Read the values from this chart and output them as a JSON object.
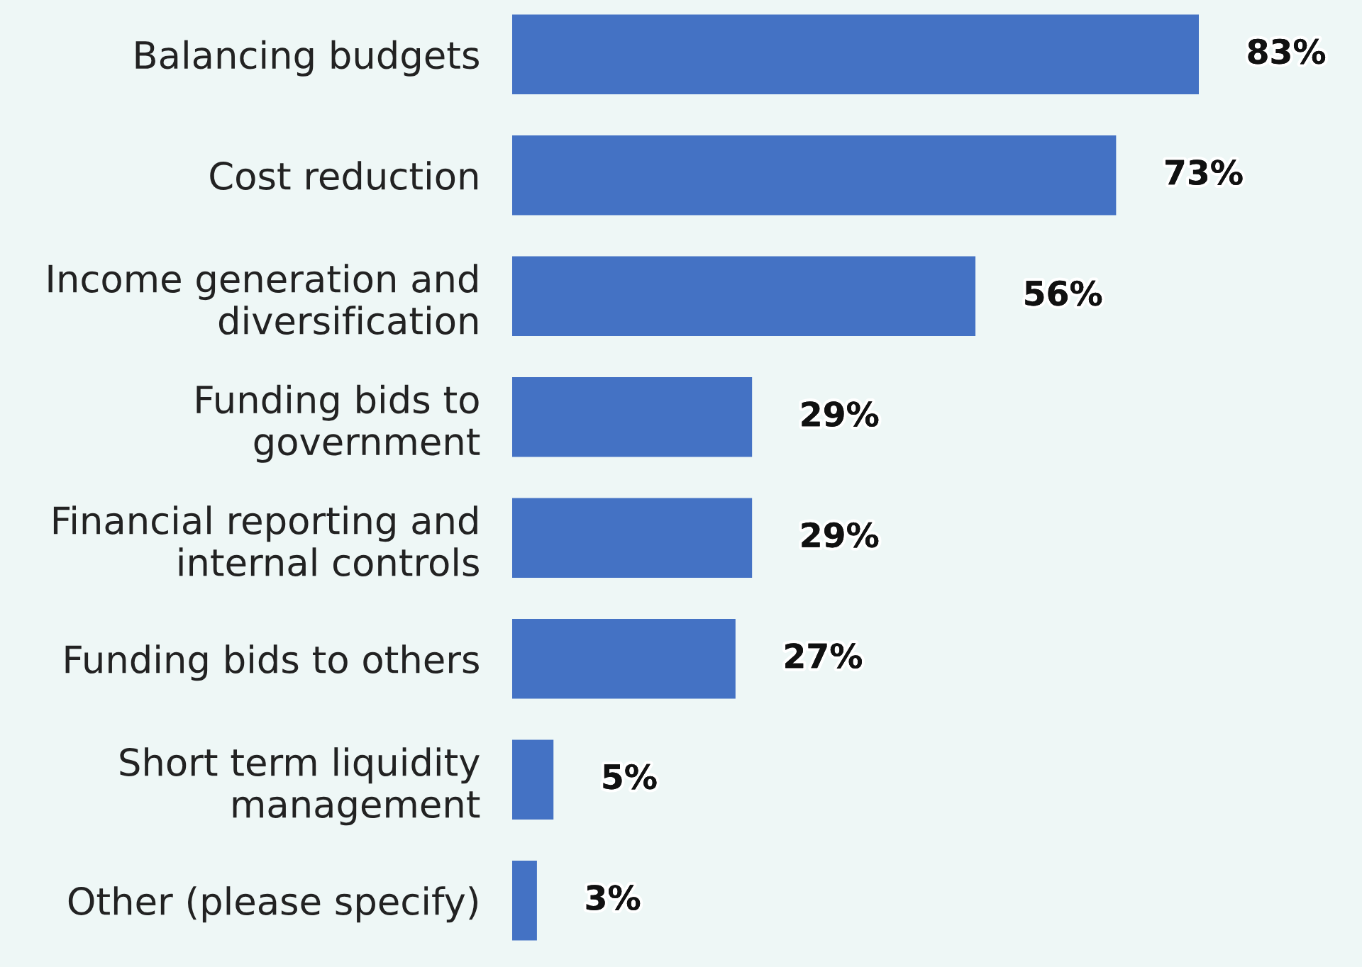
{
  "chart_data": {
    "type": "bar",
    "orientation": "horizontal",
    "categories": [
      "Balancing budgets",
      "Cost reduction",
      "Income generation and diversification",
      "Funding bids to government",
      "Financial reporting and internal controls",
      "Funding bids to others",
      "Short term liquidity management",
      "Other (please specify)"
    ],
    "values": [
      83,
      73,
      56,
      29,
      29,
      27,
      5,
      3
    ],
    "value_labels": [
      "83%",
      "73%",
      "56%",
      "29%",
      "29%",
      "27%",
      "5%",
      "3%"
    ],
    "color": "#4472c4",
    "grid": false,
    "legend": false
  }
}
